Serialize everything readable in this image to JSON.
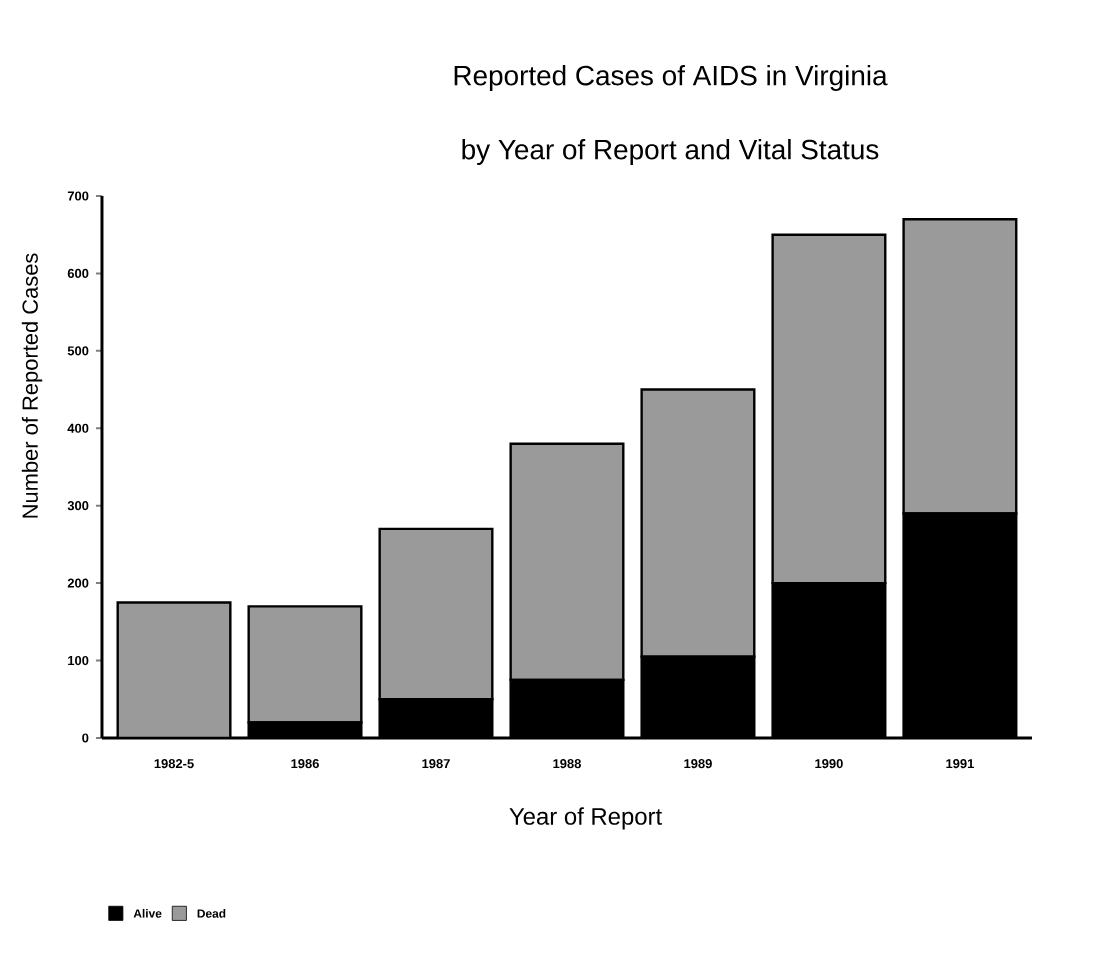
{
  "chart_data": {
    "type": "bar",
    "stacked": true,
    "title": "Reported Cases of AIDS in Virginia",
    "subtitle": "by Year of Report and Vital Status",
    "xlabel": "Year of Report",
    "ylabel": "Number of Reported Cases",
    "categories": [
      "1982-5",
      "1986",
      "1987",
      "1988",
      "1989",
      "1990",
      "1991"
    ],
    "series": [
      {
        "name": "Alive",
        "color": "#000000",
        "values": [
          null,
          20,
          50,
          75,
          105,
          200,
          290
        ]
      },
      {
        "name": "Dead",
        "color": "#9a9a9a",
        "values": [
          175,
          150,
          220,
          305,
          345,
          450,
          380
        ]
      }
    ],
    "ylim": [
      0,
      700
    ],
    "yticks": [
      0,
      100,
      200,
      300,
      400,
      500,
      600,
      700
    ],
    "legend": "bottom left"
  }
}
